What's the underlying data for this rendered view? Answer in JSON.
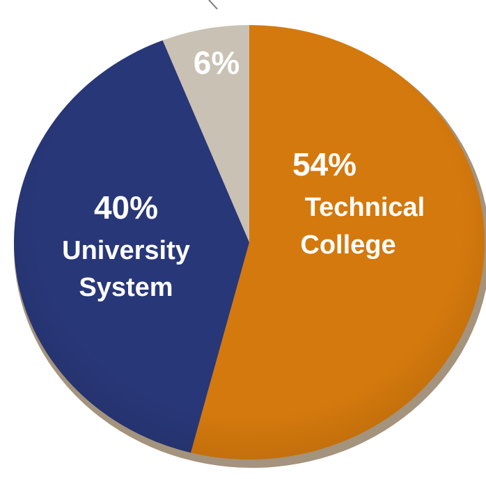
{
  "chart_data": {
    "type": "pie",
    "slices": [
      {
        "percent": "54%",
        "label_lines": [
          "Technical",
          "College"
        ],
        "value": 54,
        "color": "#D4790D"
      },
      {
        "percent": "40%",
        "label_lines": [
          "University",
          "System"
        ],
        "value": 40,
        "color": "#283778"
      },
      {
        "percent": "6%",
        "label_lines": [],
        "value": 6,
        "color": "#C9C1B4"
      }
    ],
    "start": "12 o'clock",
    "direction": "clockwise",
    "legend": "none",
    "label_color": "#FFFFFF"
  }
}
